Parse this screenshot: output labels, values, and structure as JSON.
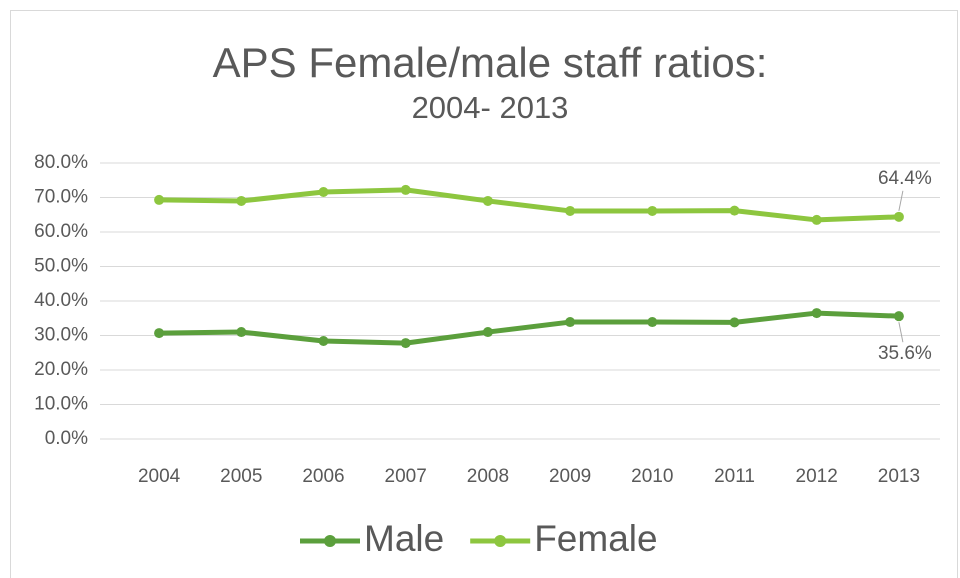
{
  "chart_data": {
    "type": "line",
    "title": "APS Female/male staff ratios:",
    "subtitle": "2004- 2013",
    "categories": [
      "2004",
      "2005",
      "2006",
      "2007",
      "2008",
      "2009",
      "2010",
      "2011",
      "2012",
      "2013"
    ],
    "series": [
      {
        "name": "Male",
        "color": "#5b9f3c",
        "values": [
          30.7,
          31.0,
          28.4,
          27.8,
          31.0,
          33.9,
          33.9,
          33.8,
          36.5,
          35.6
        ],
        "value_labels": [
          null,
          null,
          null,
          null,
          null,
          null,
          null,
          null,
          null,
          "35.6%"
        ]
      },
      {
        "name": "Female",
        "color": "#8dc63f",
        "values": [
          69.3,
          69.0,
          71.6,
          72.2,
          69.0,
          66.1,
          66.1,
          66.2,
          63.5,
          64.4
        ],
        "value_labels": [
          null,
          null,
          null,
          null,
          null,
          null,
          null,
          null,
          null,
          "64.4%"
        ]
      }
    ],
    "ylim": [
      0,
      80
    ],
    "yticks": [
      {
        "value": 0,
        "label": "0.0%"
      },
      {
        "value": 10,
        "label": "10.0%"
      },
      {
        "value": 20,
        "label": "20.0%"
      },
      {
        "value": 30,
        "label": "30.0%"
      },
      {
        "value": 40,
        "label": "40.0%"
      },
      {
        "value": 50,
        "label": "50.0%"
      },
      {
        "value": 60,
        "label": "60.0%"
      },
      {
        "value": 70,
        "label": "70.0%"
      },
      {
        "value": 80,
        "label": "80.0%"
      }
    ],
    "grid": true,
    "legend": "bottom"
  }
}
